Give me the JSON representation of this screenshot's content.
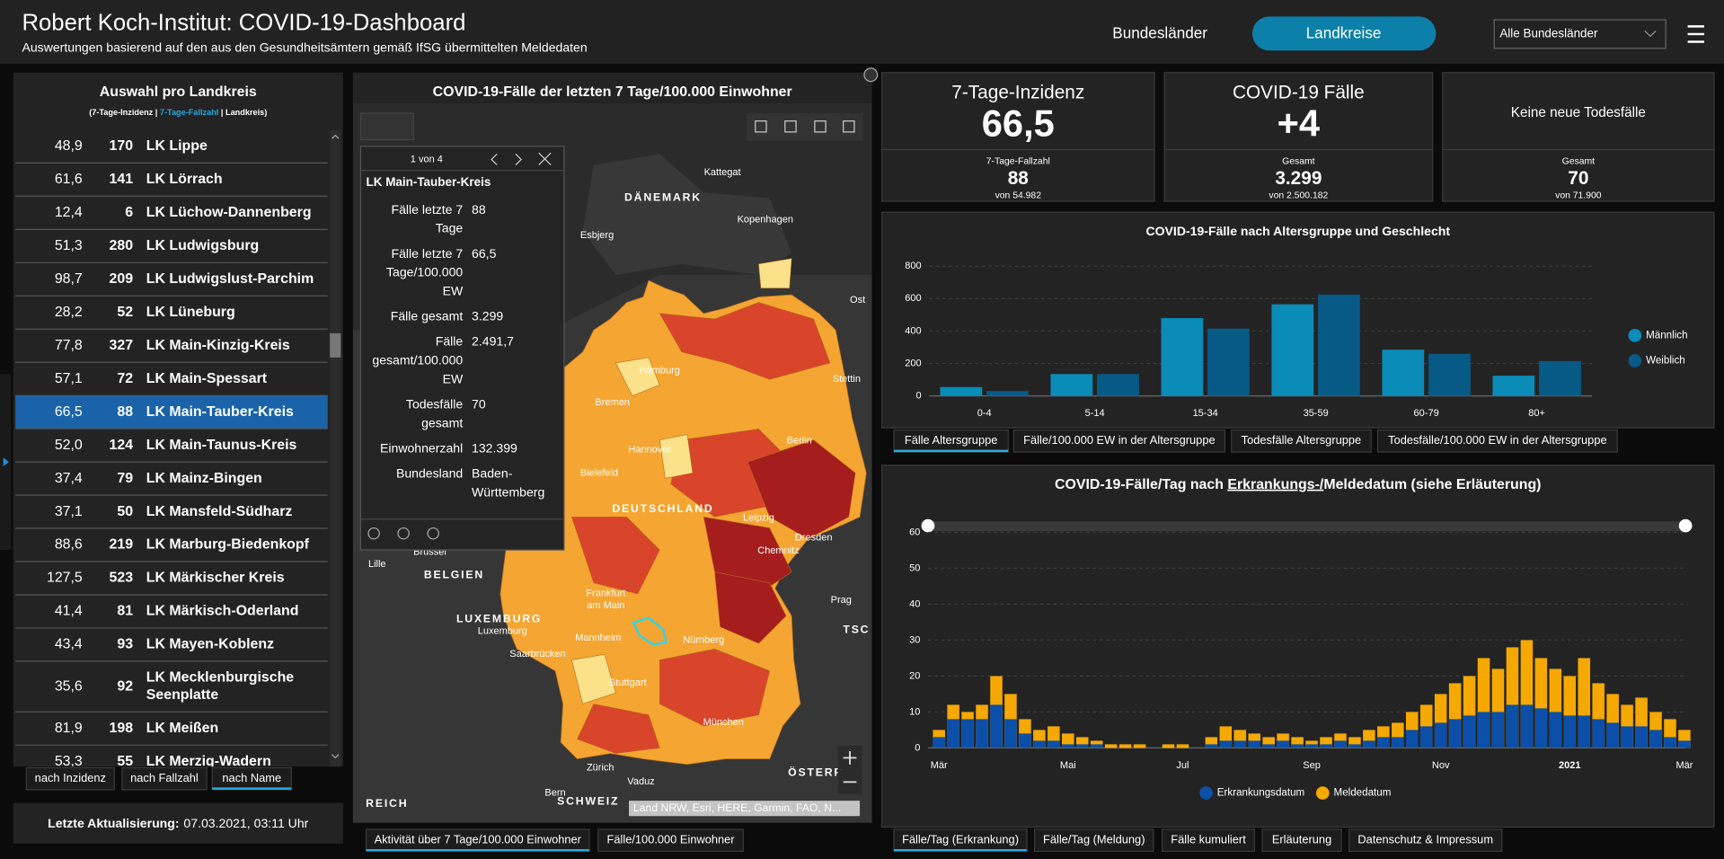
{
  "header": {
    "title": "Robert Koch-Institut: COVID-19-Dashboard",
    "subtitle": "Auswertungen basierend auf den aus den Gesundheitsämtern gemäß IfSG übermittelten Meldedaten",
    "tabs": [
      "Bundesländer",
      "Landkreise"
    ],
    "dropdown": "Alle Bundesländer"
  },
  "district_list": {
    "title": "Auswahl pro Landkreis",
    "legend": [
      "(7-Tage-Inzidenz | ",
      "7-Tage-Fallzahl",
      " | Landkreis)"
    ],
    "rows": [
      [
        "48,9",
        "170",
        "LK Lippe"
      ],
      [
        "61,6",
        "141",
        "LK Lörrach"
      ],
      [
        "12,4",
        "6",
        "LK Lüchow-Dannenberg"
      ],
      [
        "51,3",
        "280",
        "LK Ludwigsburg"
      ],
      [
        "98,7",
        "209",
        "LK Ludwigslust-Parchim"
      ],
      [
        "28,2",
        "52",
        "LK Lüneburg"
      ],
      [
        "77,8",
        "327",
        "LK Main-Kinzig-Kreis"
      ],
      [
        "57,1",
        "72",
        "LK Main-Spessart"
      ],
      [
        "66,5",
        "88",
        "LK Main-Tauber-Kreis"
      ],
      [
        "52,0",
        "124",
        "LK Main-Taunus-Kreis"
      ],
      [
        "37,4",
        "79",
        "LK Mainz-Bingen"
      ],
      [
        "37,1",
        "50",
        "LK Mansfeld-Südharz"
      ],
      [
        "88,6",
        "219",
        "LK Marburg-Biedenkopf"
      ],
      [
        "127,5",
        "523",
        "LK Märkischer Kreis"
      ],
      [
        "41,4",
        "81",
        "LK Märkisch-Oderland"
      ],
      [
        "43,4",
        "93",
        "LK Mayen-Koblenz"
      ],
      [
        "35,6",
        "92",
        "LK Mecklenburgische Seenplatte"
      ],
      [
        "81,9",
        "198",
        "LK Meißen"
      ],
      [
        "53,3",
        "55",
        "LK Merzig-Wadern"
      ]
    ],
    "sort_buttons": [
      "nach Inzidenz",
      "nach Fallzahl",
      "nach Name"
    ],
    "update_label": "Letzte Aktualisierung:",
    "update_value": "07.03.2021, 03:11 Uhr"
  },
  "map": {
    "title": "COVID-19-Fälle der letzten 7 Tage/100.000 Einwohner",
    "popup": {
      "pager": "1 von 4",
      "title": "LK Main-Tauber-Kreis",
      "fields": [
        [
          "Fälle letzte 7 Tage",
          "88"
        ],
        [
          "Fälle letzte 7 Tage/100.000 EW",
          "66,5"
        ],
        [
          "Fälle gesamt",
          "3.299"
        ],
        [
          "Fälle gesamt/100.000 EW",
          "2.491,7"
        ],
        [
          "Todesfälle gesamt",
          "70"
        ],
        [
          "Einwohnerzahl",
          "132.399"
        ],
        [
          "Bundesland",
          "Baden-Württemberg"
        ]
      ]
    },
    "labels": [
      "DÄNEMARK",
      "Kattegat",
      "Esbjerg",
      "Kopenhagen",
      "Hamburg",
      "Stettin",
      "Bremen",
      "Hannover",
      "Berlin",
      "Bielefeld",
      "DEUTSCHLAND",
      "Leipzig",
      "Dresden",
      "Chemnitz",
      "Lille",
      "BELGIEN",
      "Brüssel",
      "Frankfurt am Main",
      "LUXEMBURG",
      "Luxemburg",
      "Mannheim",
      "Nürnberg",
      "Saarbrücken",
      "Prag",
      "Stuttgart",
      "München",
      "Zürich",
      "Vaduz",
      "Bern",
      "SCHWEIZ",
      "ÖSTERR",
      "REICH",
      "Ost",
      "TSC"
    ],
    "attribution": "Land NRW, Esri, HERE, Garmin, FAO, N...",
    "tabs": [
      "Aktivität über 7 Tage/100.000 Einwohner",
      "Fälle/100.000 Einwohner"
    ]
  },
  "kpis": [
    {
      "title": "7-Tage-Inzidenz",
      "value": "66,5",
      "sub_label": "7-Tage-Fallzahl",
      "sub_value": "88",
      "sub_total": "von 54.982"
    },
    {
      "title": "COVID-19 Fälle",
      "value": "+4",
      "sub_label": "Gesamt",
      "sub_value": "3.299",
      "sub_total": "von 2.500.182"
    },
    {
      "title": "Keine neue Todesfälle",
      "sub_label": "Gesamt",
      "sub_value": "70",
      "sub_total": "von 71.900"
    }
  ],
  "chart_data": [
    {
      "type": "bar",
      "barmode": "group",
      "title": "COVID-19-Fälle nach Altersgruppe und Geschlecht",
      "categories": [
        "0-4",
        "5-14",
        "15-34",
        "35-59",
        "60-79",
        "80+"
      ],
      "series": [
        {
          "name": "Männlich",
          "color": "#0a8bb8",
          "values": [
            55,
            135,
            480,
            565,
            285,
            125
          ]
        },
        {
          "name": "Weiblich",
          "color": "#075a86",
          "values": [
            30,
            135,
            415,
            625,
            260,
            215
          ]
        }
      ],
      "ylim": [
        0,
        800
      ],
      "yticks": [
        0,
        200,
        400,
        600,
        800
      ],
      "grid": true,
      "legend": "right",
      "tabs": [
        "Fälle Altersgruppe",
        "Fälle/100.000 EW in der Altersgruppe",
        "Todesfälle Altersgruppe",
        "Todesfälle/100.000 EW in der Altersgruppe"
      ]
    },
    {
      "type": "bar",
      "barmode": "overlay",
      "title": [
        "COVID-19-Fälle/Tag nach ",
        "Erkrankungs-/",
        "Meldedatum (siehe Erläuterung)"
      ],
      "categories": [
        "Mär",
        null,
        null,
        null,
        null,
        null,
        null,
        null,
        null,
        "Mai",
        null,
        null,
        null,
        null,
        null,
        null,
        null,
        "Jul",
        null,
        null,
        null,
        null,
        null,
        null,
        null,
        null,
        "Sep",
        null,
        null,
        null,
        null,
        null,
        null,
        null,
        null,
        "Nov",
        null,
        null,
        null,
        null,
        null,
        null,
        null,
        null,
        "2021",
        null,
        null,
        null,
        null,
        null,
        null,
        null,
        "Mär"
      ],
      "series": [
        {
          "name": "Meldedatum",
          "color": "#f5a800",
          "values": [
            5,
            12,
            10,
            12,
            20,
            15,
            8,
            5,
            6,
            4,
            3,
            2,
            1,
            1,
            1,
            0,
            1,
            1,
            0,
            3,
            6,
            5,
            4,
            3,
            4,
            3,
            2,
            3,
            4,
            3,
            5,
            6,
            7,
            10,
            12,
            15,
            18,
            20,
            25,
            22,
            28,
            30,
            25,
            22,
            20,
            25,
            18,
            15,
            12,
            14,
            10,
            8,
            5
          ]
        },
        {
          "name": "Erkrankungsdatum",
          "color": "#0b4fa8",
          "values": [
            3,
            8,
            8,
            8,
            12,
            8,
            4,
            2,
            2,
            1,
            1,
            1,
            0,
            0,
            0,
            0,
            0,
            0,
            0,
            1,
            2,
            2,
            2,
            1,
            2,
            1,
            1,
            1,
            2,
            1,
            2,
            3,
            3,
            5,
            6,
            7,
            8,
            9,
            10,
            10,
            12,
            12,
            11,
            10,
            9,
            9,
            8,
            7,
            6,
            6,
            5,
            3,
            2
          ]
        }
      ],
      "ylim": [
        0,
        60
      ],
      "yticks": [
        0,
        10,
        20,
        30,
        40,
        50,
        60
      ],
      "grid": true,
      "legend": "bottom",
      "tabs": [
        "Fälle/Tag (Erkrankung)",
        "Fälle/Tag (Meldung)",
        "Fälle kumuliert",
        "Erläuterung",
        "Datenschutz & Impressum"
      ]
    }
  ]
}
